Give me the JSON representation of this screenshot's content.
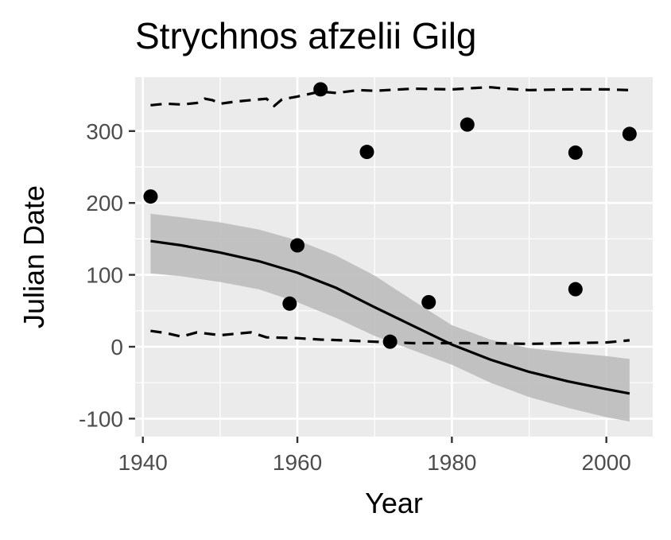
{
  "chart_data": {
    "type": "scatter",
    "title": "Strychnos afzelii Gilg",
    "xlabel": "Year",
    "ylabel": "Julian Date",
    "xlim": [
      1939,
      2006
    ],
    "ylim": [
      -125,
      375
    ],
    "x_ticks": [
      1940,
      1960,
      1980,
      2000
    ],
    "y_ticks": [
      -100,
      0,
      100,
      200,
      300
    ],
    "x_tick_labels": [
      "1940",
      "1960",
      "1980",
      "2000"
    ],
    "y_tick_labels": [
      "-100",
      "0",
      "100",
      "200",
      "300"
    ],
    "grid": true,
    "legend": "none",
    "colors": {
      "panel": "#ebebeb",
      "grid": "#ffffff",
      "points": "#000000",
      "band": "#bdbdbd"
    },
    "points": [
      {
        "x": 1941,
        "y": 209
      },
      {
        "x": 1959,
        "y": 60
      },
      {
        "x": 1960,
        "y": 141
      },
      {
        "x": 1963,
        "y": 358
      },
      {
        "x": 1969,
        "y": 271
      },
      {
        "x": 1972,
        "y": 7
      },
      {
        "x": 1977,
        "y": 62
      },
      {
        "x": 1982,
        "y": 309
      },
      {
        "x": 1996,
        "y": 270
      },
      {
        "x": 1996,
        "y": 80
      },
      {
        "x": 2003,
        "y": 296
      }
    ],
    "fit_line": {
      "x": [
        1941,
        1945,
        1950,
        1955,
        1960,
        1965,
        1970,
        1975,
        1980,
        1985,
        1990,
        1995,
        2000,
        2003
      ],
      "y": [
        147,
        141,
        131,
        119,
        103,
        82,
        55,
        29,
        3,
        -18,
        -35,
        -48,
        -59,
        -65
      ]
    },
    "confidence_band": {
      "x": [
        1941,
        1945,
        1950,
        1955,
        1960,
        1965,
        1970,
        1975,
        1980,
        1985,
        1990,
        1995,
        2000,
        2003
      ],
      "upper": [
        185,
        180,
        173,
        163,
        148,
        127,
        99,
        64,
        30,
        10,
        -2,
        -8,
        -13,
        -17
      ],
      "lower": [
        102,
        98,
        90,
        80,
        62,
        40,
        15,
        -5,
        -25,
        -50,
        -70,
        -85,
        -98,
        -104
      ]
    },
    "upper_dashed": {
      "x": [
        1941,
        1943,
        1945,
        1947,
        1948,
        1949,
        1950,
        1952,
        1954,
        1956,
        1957,
        1958,
        1960,
        1963,
        1965,
        1968,
        1970,
        1975,
        1980,
        1983,
        1985,
        1987,
        1990,
        1995,
        2000,
        2003
      ],
      "y": [
        336,
        338,
        337,
        339,
        345,
        343,
        338,
        341,
        343,
        345,
        335,
        344,
        348,
        355,
        353,
        357,
        356,
        359,
        358,
        360,
        361,
        359,
        357,
        358,
        358,
        357
      ]
    },
    "lower_dashed": {
      "x": [
        1941,
        1943,
        1945,
        1947,
        1950,
        1952,
        1954,
        1956,
        1960,
        1963,
        1966,
        1970,
        1975,
        1980,
        1985,
        1990,
        1995,
        2000,
        2003
      ],
      "y": [
        22,
        19,
        14,
        20,
        16,
        18,
        20,
        13,
        12,
        10,
        9,
        7,
        5,
        5,
        5,
        4,
        5,
        6,
        9
      ]
    }
  }
}
